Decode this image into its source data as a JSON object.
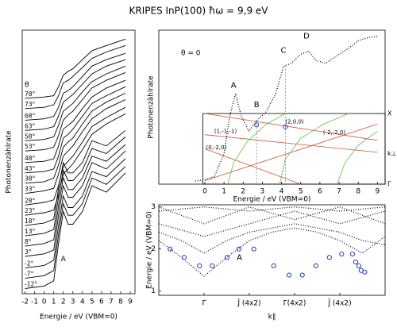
{
  "title": "KRIPES InP(100)   ħω = 9,9 eV",
  "chart_data": [
    {
      "type": "line",
      "y_label": "Photonenzählrate",
      "x_label": "Energie / eV (VBM=0)",
      "legend_title": "θ",
      "color": "#000000",
      "xlim": [
        -2.3,
        9.5
      ],
      "ylim": [
        0,
        20.5
      ],
      "xticks": [
        -2,
        -1,
        0,
        1,
        2,
        3,
        4,
        5,
        6,
        7,
        8,
        9
      ],
      "annotations": [
        {
          "text": "A",
          "x": 2
        }
      ],
      "annotation_color": "#1f3fbf",
      "x": [
        -2,
        0,
        1,
        1.5,
        2,
        2.5,
        3,
        4,
        5,
        6.5,
        8.5
      ],
      "series": [
        {
          "name": "-12°",
          "values": [
            0.4,
            0.6,
            1.0,
            3.9,
            6.4,
            5.4,
            5.4,
            6.4,
            8.4,
            7.9,
            9.4
          ]
        },
        {
          "name": "-7°",
          "values": [
            1.2,
            1.4,
            1.8,
            4.6,
            7.0,
            6.1,
            6.1,
            7.0,
            9.0,
            8.5,
            9.9
          ]
        },
        {
          "name": "-2°",
          "values": [
            2.0,
            2.2,
            2.6,
            5.3,
            7.6,
            6.7,
            6.7,
            7.6,
            9.5,
            9.1,
            10.5
          ]
        },
        {
          "name": "3°",
          "values": [
            2.9,
            3.1,
            3.4,
            6.1,
            8.4,
            7.5,
            7.5,
            8.4,
            10.2,
            9.7,
            11.1
          ]
        },
        {
          "name": "8°",
          "values": [
            3.7,
            3.9,
            4.2,
            6.8,
            9.0,
            8.1,
            8.1,
            9.0,
            10.7,
            10.3,
            11.6
          ]
        },
        {
          "name": "13°",
          "values": [
            4.5,
            4.7,
            5.0,
            7.5,
            9.6,
            8.8,
            8.8,
            9.6,
            11.3,
            10.9,
            12.2
          ]
        },
        {
          "name": "18°",
          "values": [
            5.3,
            5.5,
            5.8,
            8.2,
            10.2,
            9.4,
            9.4,
            10.2,
            11.9,
            11.5,
            12.7
          ]
        },
        {
          "name": "23°",
          "values": [
            6.1,
            6.3,
            6.5,
            7.7,
            9.3,
            9.7,
            10.1,
            11.2,
            12.4,
            13.2,
            14.0
          ]
        },
        {
          "name": "28°",
          "values": [
            6.9,
            7.1,
            7.3,
            8.4,
            9.9,
            10.3,
            10.7,
            11.8,
            13.0,
            13.7,
            14.5
          ]
        },
        {
          "name": "33°",
          "values": [
            7.8,
            8.0,
            8.2,
            9.3,
            10.7,
            11.1,
            11.5,
            12.6,
            13.6,
            14.4,
            15.1
          ]
        },
        {
          "name": "38°",
          "values": [
            8.6,
            8.7,
            9.0,
            10.0,
            11.4,
            11.8,
            12.1,
            13.2,
            14.2,
            14.9,
            15.6
          ]
        },
        {
          "name": "43°",
          "values": [
            9.4,
            9.5,
            9.7,
            10.7,
            12.1,
            12.4,
            12.8,
            13.8,
            14.8,
            15.4,
            16.1
          ]
        },
        {
          "name": "48°",
          "values": [
            10.2,
            10.3,
            10.5,
            11.5,
            12.8,
            13.1,
            13.4,
            14.4,
            15.3,
            16.0,
            16.6
          ]
        },
        {
          "name": "53°",
          "values": [
            11.1,
            11.2,
            11.4,
            12.3,
            13.5,
            13.9,
            14.2,
            15.1,
            16.0,
            16.6,
            17.2
          ]
        },
        {
          "name": "58°",
          "values": [
            11.9,
            12.0,
            12.2,
            13.1,
            14.2,
            14.5,
            14.8,
            15.7,
            16.5,
            17.1,
            17.7
          ]
        },
        {
          "name": "63°",
          "values": [
            12.7,
            12.8,
            13.0,
            13.8,
            14.9,
            15.2,
            15.5,
            16.3,
            17.1,
            17.7,
            18.2
          ]
        },
        {
          "name": "68°",
          "values": [
            13.5,
            13.6,
            13.8,
            14.5,
            15.6,
            15.8,
            16.1,
            16.9,
            17.7,
            18.2,
            18.7
          ]
        },
        {
          "name": "73°",
          "values": [
            14.4,
            14.5,
            14.7,
            15.4,
            16.4,
            16.6,
            16.9,
            17.6,
            18.3,
            18.8,
            19.3
          ]
        },
        {
          "name": "78°",
          "values": [
            15.2,
            15.3,
            15.4,
            16.1,
            17.0,
            17.3,
            17.5,
            18.2,
            18.9,
            19.3,
            19.8
          ]
        }
      ]
    },
    {
      "type": "line",
      "label": "θ = 0",
      "y_label": "Photonenzählrate",
      "x_label": "Energie / eV (VBM=0)",
      "color": "#000000",
      "line_style": "dotted",
      "xlim": [
        -2.4,
        9.4
      ],
      "ylim": [
        0,
        1.02
      ],
      "xticks": [
        0,
        1,
        2,
        3,
        4,
        5,
        6,
        7,
        8,
        9
      ],
      "x": [
        -0.5,
        0,
        0.5,
        1,
        1.3,
        1.6,
        1.9,
        2.3,
        2.7,
        3.2,
        3.7,
        4.1,
        4.5,
        5.0,
        5.4,
        5.8,
        6.3,
        7,
        7.5,
        8,
        8.5,
        9
      ],
      "values": [
        0.02,
        0.03,
        0.05,
        0.2,
        0.45,
        0.6,
        0.45,
        0.35,
        0.42,
        0.48,
        0.6,
        0.78,
        0.8,
        0.86,
        0.88,
        0.82,
        0.8,
        0.86,
        0.9,
        0.95,
        0.97,
        0.98
      ],
      "annotations": [
        {
          "text": "A",
          "x": 1.5
        },
        {
          "text": "B",
          "x": 2.7
        },
        {
          "text": "C",
          "x": 4.1
        },
        {
          "text": "D",
          "x": 5.3
        }
      ],
      "annotation_color": "#1f3fbf",
      "inset": {
        "ylim": [
          0,
          1
        ],
        "yticks": [
          {
            "value": 0,
            "label": "Γ"
          },
          {
            "value": 1,
            "label": "X"
          }
        ],
        "y_label": "k⊥",
        "series": [
          {
            "name": "(2,0,0)",
            "color": "#d0502f",
            "x": [
              0,
              9
            ],
            "values": [
              1.0,
              0.62
            ]
          },
          {
            "name": "(1,-1,-1)",
            "color": "#d0502f",
            "x": [
              0,
              9
            ],
            "values": [
              0.7,
              0.45
            ]
          },
          {
            "name": "(-2,-2,0)",
            "color": "#d0502f",
            "x": [
              0,
              9
            ],
            "values": [
              0.05,
              0.85
            ]
          },
          {
            "name": "(0,-2,0)",
            "color": "#d0502f",
            "x": [
              0,
              5
            ],
            "values": [
              0.5,
              0.0
            ]
          },
          {
            "color": "#5cbf3f",
            "x": [
              1.2,
              1.5,
              2.2,
              3.2,
              4.2
            ],
            "values": [
              0,
              0.3,
              0.6,
              0.85,
              1.0
            ]
          },
          {
            "color": "#5cbf3f",
            "x": [
              3.9,
              4.2,
              5.0,
              6.2,
              7.5
            ],
            "values": [
              0,
              0.35,
              0.65,
              0.85,
              1.0
            ]
          },
          {
            "color": "#5cbf3f",
            "x": [
              6.9,
              7.3,
              8.0,
              9.0
            ],
            "values": [
              0,
              0.3,
              0.55,
              0.75
            ]
          }
        ],
        "points": {
          "color": "#1f3fbf",
          "x": [
            2.7,
            4.2
          ],
          "values": [
            0.84,
            0.81
          ]
        }
      }
    },
    {
      "type": "scatter",
      "y_label": "Energie / eV (VBM=0)",
      "x_label": "k∥",
      "xlim": [
        -1,
        4
      ],
      "ylim": [
        0.9,
        3.05
      ],
      "yticks": [
        1,
        2,
        3
      ],
      "xticks": [
        {
          "value": 0,
          "label": "Γ̄"
        },
        {
          "value": 1,
          "label": "J̄ (4x2)"
        },
        {
          "value": 2,
          "label": "Γ̄(4x2)"
        },
        {
          "value": 3,
          "label": "J̄ (4x2)"
        }
      ],
      "series": [
        {
          "color": "#000000",
          "line_style": "dotted",
          "x": [
            -1,
            -0.5,
            0,
            0.5,
            1,
            1.5,
            2,
            2.5,
            3,
            3.5,
            4
          ],
          "values": [
            2.9,
            2.95,
            3.0,
            2.95,
            2.9,
            2.95,
            3.0,
            2.95,
            2.9,
            2.95,
            3.0
          ]
        },
        {
          "color": "#000000",
          "line_style": "dotted",
          "x": [
            -1,
            -0.5,
            0,
            0.5,
            1,
            1.5,
            2,
            2.5,
            3,
            3.5,
            4
          ],
          "values": [
            3.0,
            2.8,
            2.6,
            2.8,
            3.0,
            2.85,
            2.7,
            2.85,
            3.0,
            2.8,
            2.6
          ]
        },
        {
          "color": "#000000",
          "line_style": "dotted",
          "x": [
            -1,
            -0.5,
            0,
            0.5,
            1,
            1.5,
            2,
            2.5,
            3,
            3.5,
            4
          ],
          "values": [
            2.6,
            2.45,
            2.3,
            2.45,
            2.6,
            2.75,
            2.9,
            2.75,
            2.6,
            2.75,
            2.9
          ]
        },
        {
          "color": "#000000",
          "line_style": "dotted",
          "x": [
            -1,
            -0.5,
            0,
            0.5,
            1,
            1.5,
            2,
            2.5,
            3,
            3.5,
            4
          ],
          "values": [
            2.4,
            2.2,
            1.9,
            2.2,
            2.4,
            2.5,
            2.6,
            2.5,
            2.4,
            2.2,
            2.1
          ]
        },
        {
          "color": "#000000",
          "line_style": "dotted",
          "x": [
            -1,
            -0.5,
            0,
            0.5,
            1,
            1.5,
            2,
            2.5,
            3,
            3.5,
            4
          ],
          "values": [
            2.2,
            1.8,
            1.35,
            1.8,
            2.2,
            2.4,
            2.5,
            2.4,
            2.2,
            1.9,
            2.3
          ]
        },
        {
          "name": "A",
          "color": "#1f3fbf",
          "marker": "open-circle",
          "x": [
            -0.75,
            -0.44,
            -0.1,
            0.18,
            0.51,
            0.77,
            1.1,
            1.54,
            1.88,
            2.17,
            2.47,
            2.77,
            3.04,
            3.28,
            3.35,
            3.42,
            3.47,
            3.55
          ],
          "values": [
            2.0,
            1.8,
            1.6,
            1.6,
            1.8,
            2.0,
            2.0,
            1.6,
            1.38,
            1.38,
            1.6,
            1.8,
            1.88,
            1.88,
            1.69,
            1.6,
            1.49,
            1.45
          ]
        }
      ]
    }
  ]
}
